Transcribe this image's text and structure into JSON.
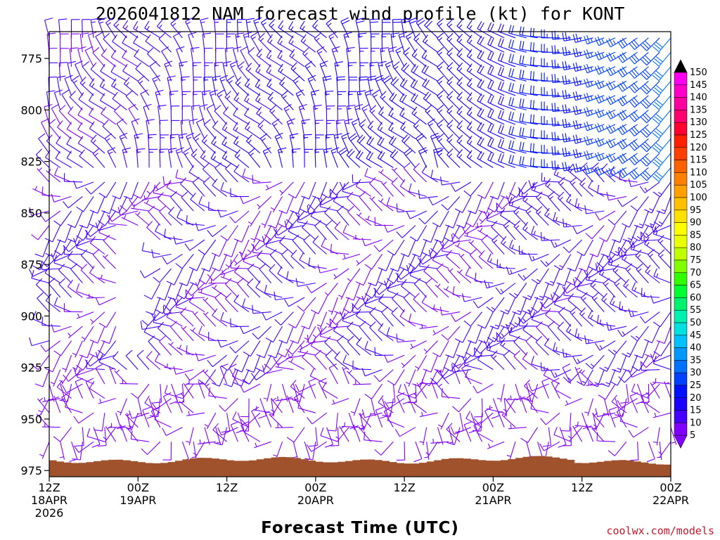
{
  "chart_data": {
    "type": "wind-barb-time-height",
    "title": "2026041812 NAM forecast wind profile (kt) for KONT",
    "xlabel": "Forecast Time (UTC)",
    "credit": "coolwx.com/models",
    "time_range_hours": [
      0,
      84
    ],
    "pressure_range_hPa": [
      762,
      978
    ],
    "ground_level_hPa_approx": 970,
    "y_ticks": [
      {
        "value": 775,
        "label": "775"
      },
      {
        "value": 800,
        "label": "800"
      },
      {
        "value": 825,
        "label": "825"
      },
      {
        "value": 850,
        "label": "850"
      },
      {
        "value": 875,
        "label": "875"
      },
      {
        "value": 900,
        "label": "900"
      },
      {
        "value": 925,
        "label": "925"
      },
      {
        "value": 950,
        "label": "950"
      },
      {
        "value": 975,
        "label": "975"
      }
    ],
    "x_ticks": [
      {
        "hour": 0,
        "lines": [
          "12Z",
          "18APR",
          "2026"
        ]
      },
      {
        "hour": 12,
        "lines": [
          "00Z",
          "19APR"
        ]
      },
      {
        "hour": 24,
        "lines": [
          "12Z"
        ]
      },
      {
        "hour": 36,
        "lines": [
          "00Z",
          "20APR"
        ]
      },
      {
        "hour": 48,
        "lines": [
          "12Z"
        ]
      },
      {
        "hour": 60,
        "lines": [
          "00Z",
          "21APR"
        ]
      },
      {
        "hour": 72,
        "lines": [
          "12Z"
        ]
      },
      {
        "hour": 84,
        "lines": [
          "00Z",
          "22APR"
        ]
      }
    ],
    "colorbar": {
      "units": "kt",
      "levels": [
        5,
        10,
        15,
        20,
        25,
        30,
        35,
        40,
        45,
        50,
        55,
        60,
        65,
        70,
        75,
        80,
        85,
        90,
        95,
        100,
        105,
        110,
        115,
        120,
        125,
        130,
        135,
        140,
        145,
        150
      ],
      "colors": [
        "#7f00ff",
        "#4400ff",
        "#1a00ff",
        "#0010ff",
        "#0040ff",
        "#0070ff",
        "#0098ff",
        "#00c0ff",
        "#00e0e0",
        "#00f0b0",
        "#00f070",
        "#00ff30",
        "#30ff00",
        "#80ff00",
        "#c0ff00",
        "#eaff00",
        "#ffff00",
        "#ffe000",
        "#ffc000",
        "#ffa000",
        "#ff8000",
        "#ff6000",
        "#ff4000",
        "#ff2000",
        "#ff0030",
        "#ff0070",
        "#ff00a0",
        "#ff00c8",
        "#ff00f0",
        "#000000"
      ]
    },
    "wind_field_summary": [
      {
        "hours": "0-36",
        "levels_hPa": "950-975",
        "speed_kt": "5-10",
        "note": "light, variable direction near surface"
      },
      {
        "hours": "0-60",
        "levels_hPa": "850-925",
        "speed_kt": "5-12",
        "note": "light westerly to southwesterly"
      },
      {
        "hours": "24-48",
        "levels_hPa": "775-825",
        "speed_kt": "10-20",
        "note": "northerly to northwesterly, stronger aloft"
      },
      {
        "hours": "60-84",
        "levels_hPa": "765-810",
        "speed_kt": "20-30",
        "note": "strong southwesterly flow aloft"
      },
      {
        "hours": "60-84",
        "levels_hPa": "825-900",
        "speed_kt": "8-15",
        "note": "southwesterly"
      }
    ]
  }
}
